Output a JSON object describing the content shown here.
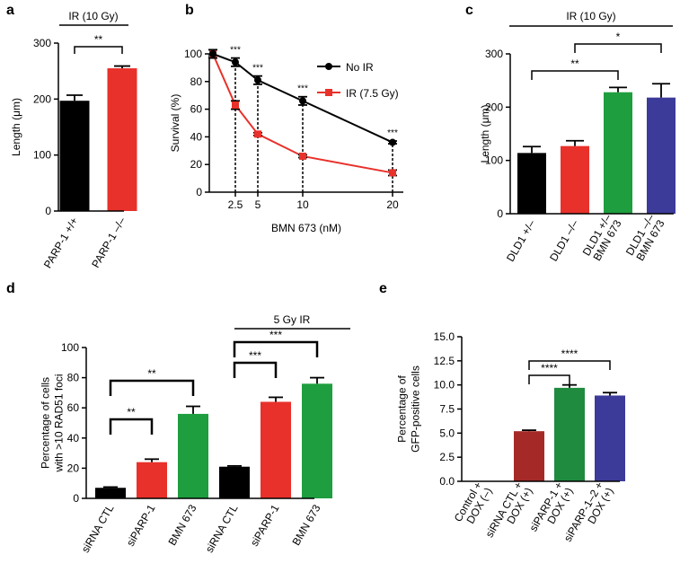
{
  "colors": {
    "black": "#000000",
    "red": "#e8312a",
    "green": "#1e9e3e",
    "blue": "#3c3b99",
    "darkred": "#a52a27",
    "darkgreen": "#1f8b3f"
  },
  "chart_data": [
    {
      "id": "a",
      "panel_label": "a",
      "type": "bar",
      "header": "IR (10 Gy)",
      "ylabel": "Length (μm)",
      "ylim": [
        0,
        300
      ],
      "yticks": [
        "0",
        "100",
        "200",
        "300"
      ],
      "categories": [
        "PARP-1 +/+",
        "PARP-1 –/–"
      ],
      "values": [
        197,
        255
      ],
      "errors": [
        10,
        4
      ],
      "colors": [
        "#000000",
        "#e8312a"
      ],
      "significance": [
        {
          "from": 0,
          "to": 1,
          "label": "**"
        }
      ]
    },
    {
      "id": "b",
      "panel_label": "b",
      "type": "line",
      "xlabel": "BMN 673 (nM)",
      "ylabel": "Survival (%)",
      "xlim": [
        0,
        22
      ],
      "ylim": [
        0,
        100
      ],
      "xticks": [
        "2.5",
        "5",
        "10",
        "20"
      ],
      "yticks": [
        "0",
        "20",
        "40",
        "60",
        "80",
        "100"
      ],
      "series": [
        {
          "name": "No IR",
          "x": [
            0,
            2.5,
            5,
            10,
            20
          ],
          "values": [
            100,
            94,
            81,
            66,
            36
          ],
          "errors": [
            3,
            3,
            3,
            3,
            1
          ],
          "color": "#000000",
          "marker": "circle"
        },
        {
          "name": "IR (7.5 Gy)",
          "x": [
            0,
            2.5,
            5,
            10,
            20
          ],
          "values": [
            100,
            63,
            42,
            26,
            14
          ],
          "errors": [
            3,
            3,
            1,
            1,
            2
          ],
          "color": "#e8312a",
          "marker": "square"
        }
      ],
      "significance": [
        {
          "x": 2.5,
          "label": "***"
        },
        {
          "x": 5,
          "label": "***"
        },
        {
          "x": 10,
          "label": "***"
        },
        {
          "x": 20,
          "label": "***"
        }
      ],
      "legend_position": "top-right"
    },
    {
      "id": "c",
      "panel_label": "c",
      "type": "bar",
      "header": "IR (10 Gy)",
      "ylabel": "Length (μm)",
      "ylim": [
        0,
        300
      ],
      "yticks": [
        "0",
        "100",
        "200",
        "300"
      ],
      "categories": [
        [
          "DLD1 +/–"
        ],
        [
          "DLD1 –/–"
        ],
        [
          "DLD1 +/–",
          "BMN 673"
        ],
        [
          "DLD1 –/–",
          "BMN 673"
        ]
      ],
      "values": [
        114,
        127,
        228,
        218
      ],
      "errors": [
        12,
        10,
        9,
        26
      ],
      "colors": [
        "#000000",
        "#e8312a",
        "#1e9e3e",
        "#3c3b99"
      ],
      "significance": [
        {
          "from": 0,
          "to": 2,
          "label": "**"
        },
        {
          "from": 1,
          "to": 3,
          "label": "*"
        }
      ]
    },
    {
      "id": "d",
      "panel_label": "d",
      "type": "bar",
      "header": "5 Gy IR",
      "ylabel": [
        "Percentage of cells",
        "with >10 RAD51 foci"
      ],
      "ylim": [
        0,
        100
      ],
      "yticks": [
        "0",
        "20",
        "40",
        "60",
        "80",
        "100"
      ],
      "categories": [
        "siRNA CTL",
        "siPARP-1",
        "BMN 673",
        "siRNA CTL",
        "siPARP-1",
        "BMN 673"
      ],
      "values": [
        7,
        24,
        56,
        21,
        64,
        76
      ],
      "errors": [
        0.5,
        2,
        5,
        0.5,
        3,
        4
      ],
      "colors": [
        "#000000",
        "#e8312a",
        "#1e9e3e",
        "#000000",
        "#e8312a",
        "#1e9e3e"
      ],
      "significance": [
        {
          "from": 0,
          "to": 1,
          "label": "**"
        },
        {
          "from": 0,
          "to": 2,
          "label": "**"
        },
        {
          "from": 3,
          "to": 4,
          "label": "***"
        },
        {
          "from": 3,
          "to": 5,
          "label": "***"
        }
      ]
    },
    {
      "id": "e",
      "panel_label": "e",
      "type": "bar",
      "ylabel": [
        "Percentage of",
        "GFP-positive cells"
      ],
      "ylim": [
        0,
        15
      ],
      "yticks": [
        "0.0",
        "2.5",
        "5.0",
        "7.5",
        "10.0",
        "12.5",
        "15.0"
      ],
      "categories": [
        [
          "Control +",
          "DOX (–)"
        ],
        [
          "siRNA CTL +",
          "DOX (+)"
        ],
        [
          "siPARP-1 +",
          "DOX (+)"
        ],
        [
          "siPARP-1–2 +",
          "DOX (+)"
        ]
      ],
      "values": [
        0,
        5.2,
        9.7,
        8.9
      ],
      "errors": [
        0,
        0.1,
        0.3,
        0.3
      ],
      "colors": [
        "#a52a27",
        "#a52a27",
        "#1f8b3f",
        "#3c3b99"
      ],
      "significance": [
        {
          "from": 1,
          "to": 2,
          "label": "****"
        },
        {
          "from": 1,
          "to": 3,
          "label": "****"
        }
      ]
    }
  ]
}
